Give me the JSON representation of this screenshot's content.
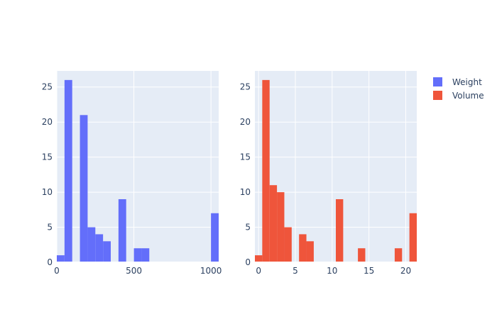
{
  "colors": {
    "plot_bg": "#e5ecf6",
    "grid": "#ffffff",
    "text": "#2a3f5f"
  },
  "legend": {
    "position": "top-right",
    "items": [
      {
        "name": "Weight",
        "color": "#636efa"
      },
      {
        "name": "Volume",
        "color": "#ef553b"
      }
    ]
  },
  "chart_data": [
    {
      "type": "bar",
      "series_name": "Weight",
      "color": "#636efa",
      "xlim": [
        0,
        1050
      ],
      "ylim": [
        0,
        27.3
      ],
      "xticks": [
        0,
        500,
        1000
      ],
      "yticks": [
        0,
        5,
        10,
        15,
        20,
        25
      ],
      "bin_width": 50,
      "bins": [
        {
          "x0": 0,
          "x1": 50,
          "count": 1
        },
        {
          "x0": 50,
          "x1": 100,
          "count": 26
        },
        {
          "x0": 150,
          "x1": 200,
          "count": 21
        },
        {
          "x0": 200,
          "x1": 250,
          "count": 5
        },
        {
          "x0": 250,
          "x1": 300,
          "count": 4
        },
        {
          "x0": 300,
          "x1": 350,
          "count": 3
        },
        {
          "x0": 400,
          "x1": 450,
          "count": 9
        },
        {
          "x0": 500,
          "x1": 550,
          "count": 2
        },
        {
          "x0": 550,
          "x1": 600,
          "count": 2
        },
        {
          "x0": 1000,
          "x1": 1050,
          "count": 7
        }
      ]
    },
    {
      "type": "bar",
      "series_name": "Volume",
      "color": "#ef553b",
      "xlim": [
        -0.5,
        21.5
      ],
      "ylim": [
        0,
        27.3
      ],
      "xticks": [
        0,
        5,
        10,
        15,
        20
      ],
      "yticks": [
        0,
        5,
        10,
        15,
        20,
        25
      ],
      "bin_width": 1,
      "bins": [
        {
          "x0": -0.5,
          "x1": 0.5,
          "count": 1
        },
        {
          "x0": 0.5,
          "x1": 1.5,
          "count": 26
        },
        {
          "x0": 1.5,
          "x1": 2.5,
          "count": 11
        },
        {
          "x0": 2.5,
          "x1": 3.5,
          "count": 10
        },
        {
          "x0": 3.5,
          "x1": 4.5,
          "count": 5
        },
        {
          "x0": 5.5,
          "x1": 6.5,
          "count": 4
        },
        {
          "x0": 6.5,
          "x1": 7.5,
          "count": 3
        },
        {
          "x0": 10.5,
          "x1": 11.5,
          "count": 9
        },
        {
          "x0": 13.5,
          "x1": 14.5,
          "count": 2
        },
        {
          "x0": 18.5,
          "x1": 19.5,
          "count": 2
        },
        {
          "x0": 20.5,
          "x1": 21.5,
          "count": 7
        }
      ]
    }
  ]
}
